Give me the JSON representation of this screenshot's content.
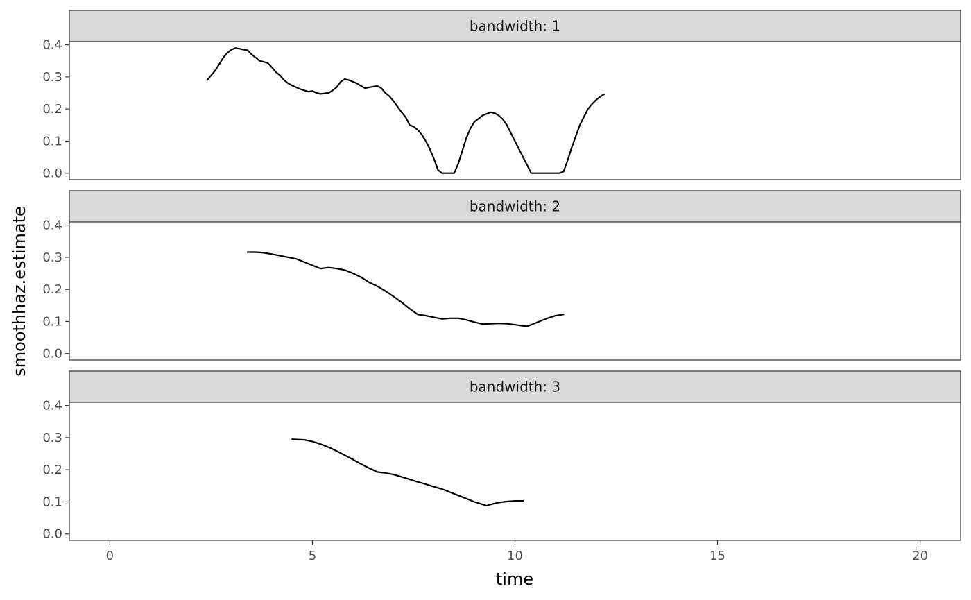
{
  "chart_data": {
    "type": "line",
    "xlabel": "time",
    "ylabel": "smoothhaz.estimate",
    "xlim": [
      -1,
      21
    ],
    "ylim": [
      -0.02,
      0.41
    ],
    "x_ticks": [
      0,
      5,
      10,
      15,
      20
    ],
    "x_tick_labels": [
      "0",
      "5",
      "10",
      "15",
      "20"
    ],
    "y_ticks": [
      0.0,
      0.1,
      0.2,
      0.3,
      0.4
    ],
    "y_tick_labels": [
      "0.0",
      "0.1",
      "0.2",
      "0.3",
      "0.4"
    ],
    "grid": false,
    "line_color": "#000000",
    "strip_fill": "#d9d9d9",
    "panels": [
      {
        "label": "bandwidth: 1",
        "x": [
          2.4,
          2.6,
          2.8,
          2.9,
          3.0,
          3.1,
          3.2,
          3.3,
          3.4,
          3.5,
          3.7,
          3.8,
          3.9,
          4.0,
          4.1,
          4.2,
          4.3,
          4.4,
          4.5,
          4.7,
          4.9,
          5.0,
          5.1,
          5.2,
          5.4,
          5.5,
          5.6,
          5.7,
          5.8,
          5.9,
          6.1,
          6.2,
          6.3,
          6.5,
          6.6,
          6.7,
          6.8,
          6.9,
          7.0,
          7.2,
          7.3,
          7.4,
          7.5,
          7.6,
          7.7,
          7.8,
          7.9,
          8.0,
          8.1,
          8.2,
          8.3,
          8.4,
          8.5,
          8.6,
          8.7,
          8.8,
          8.9,
          9.0,
          9.2,
          9.4,
          9.5,
          9.6,
          9.7,
          9.8,
          10.0,
          10.2,
          10.4,
          10.5,
          10.6,
          10.7,
          10.8,
          10.9,
          11.0,
          11.1,
          11.2,
          11.3,
          11.4,
          11.5,
          11.6,
          11.7,
          11.8,
          11.9,
          12.0,
          12.1,
          12.2
        ],
        "y": [
          0.29,
          0.32,
          0.36,
          0.375,
          0.385,
          0.39,
          0.388,
          0.385,
          0.383,
          0.37,
          0.35,
          0.347,
          0.343,
          0.33,
          0.315,
          0.305,
          0.29,
          0.28,
          0.273,
          0.262,
          0.254,
          0.256,
          0.25,
          0.247,
          0.25,
          0.258,
          0.268,
          0.285,
          0.293,
          0.29,
          0.28,
          0.272,
          0.265,
          0.27,
          0.272,
          0.265,
          0.25,
          0.24,
          0.225,
          0.19,
          0.175,
          0.15,
          0.145,
          0.135,
          0.12,
          0.1,
          0.075,
          0.045,
          0.01,
          0.0,
          0.0,
          0.0,
          0.0,
          0.03,
          0.07,
          0.11,
          0.14,
          0.16,
          0.18,
          0.19,
          0.187,
          0.18,
          0.168,
          0.15,
          0.1,
          0.05,
          0.0,
          0.0,
          0.0,
          0.0,
          0.0,
          0.0,
          0.0,
          0.0,
          0.005,
          0.04,
          0.08,
          0.115,
          0.15,
          0.175,
          0.2,
          0.215,
          0.228,
          0.238,
          0.246
        ]
      },
      {
        "label": "bandwidth: 2",
        "x": [
          3.4,
          3.6,
          3.8,
          4.0,
          4.2,
          4.4,
          4.6,
          4.8,
          5.0,
          5.2,
          5.4,
          5.6,
          5.8,
          6.0,
          6.2,
          6.4,
          6.6,
          6.8,
          7.0,
          7.2,
          7.4,
          7.6,
          7.8,
          8.0,
          8.2,
          8.4,
          8.6,
          8.8,
          9.0,
          9.2,
          9.4,
          9.6,
          9.8,
          10.0,
          10.2,
          10.3,
          10.4,
          10.6,
          10.8,
          11.0,
          11.2
        ],
        "y": [
          0.316,
          0.316,
          0.314,
          0.31,
          0.305,
          0.3,
          0.295,
          0.285,
          0.275,
          0.265,
          0.268,
          0.265,
          0.26,
          0.25,
          0.238,
          0.222,
          0.21,
          0.195,
          0.178,
          0.16,
          0.14,
          0.122,
          0.118,
          0.113,
          0.108,
          0.11,
          0.11,
          0.105,
          0.098,
          0.092,
          0.093,
          0.094,
          0.093,
          0.09,
          0.086,
          0.085,
          0.09,
          0.1,
          0.11,
          0.118,
          0.122
        ]
      },
      {
        "label": "bandwidth: 3",
        "x": [
          4.5,
          4.8,
          5.0,
          5.2,
          5.4,
          5.6,
          5.8,
          6.0,
          6.2,
          6.4,
          6.6,
          6.8,
          7.0,
          7.2,
          7.4,
          7.6,
          7.8,
          8.0,
          8.2,
          8.4,
          8.6,
          8.8,
          9.0,
          9.2,
          9.3,
          9.4,
          9.6,
          9.8,
          10.0,
          10.2
        ],
        "y": [
          0.295,
          0.293,
          0.288,
          0.28,
          0.27,
          0.258,
          0.245,
          0.232,
          0.218,
          0.205,
          0.193,
          0.19,
          0.185,
          0.178,
          0.17,
          0.162,
          0.155,
          0.147,
          0.14,
          0.13,
          0.12,
          0.11,
          0.1,
          0.092,
          0.088,
          0.092,
          0.098,
          0.101,
          0.103,
          0.103
        ]
      }
    ]
  }
}
